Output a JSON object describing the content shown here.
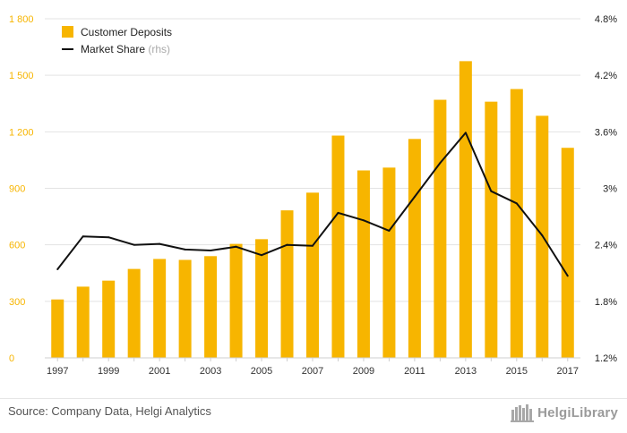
{
  "chart_data": {
    "type": "bar+line",
    "title": "",
    "categories": [
      "1997",
      "1998",
      "1999",
      "2000",
      "2001",
      "2002",
      "2003",
      "2004",
      "2005",
      "2006",
      "2007",
      "2008",
      "2009",
      "2010",
      "2011",
      "2012",
      "2013",
      "2014",
      "2015",
      "2016",
      "2017"
    ],
    "x_tick_labels": [
      "1997",
      "1999",
      "2001",
      "2003",
      "2005",
      "2007",
      "2009",
      "2011",
      "2013",
      "2015",
      "2017"
    ],
    "series": [
      {
        "name": "Customer Deposits",
        "type": "bar",
        "axis": "left",
        "color": "#f7b500",
        "values": [
          310,
          378,
          410,
          472,
          525,
          520,
          540,
          605,
          630,
          783,
          877,
          1180,
          995,
          1010,
          1162,
          1370,
          1575,
          1360,
          1427,
          1285,
          1115
        ]
      },
      {
        "name": "Market Share",
        "name_suffix": "(rhs)",
        "type": "line",
        "axis": "right",
        "color": "#111111",
        "values": [
          2.14,
          2.49,
          2.48,
          2.4,
          2.41,
          2.35,
          2.34,
          2.38,
          2.29,
          2.4,
          2.39,
          2.74,
          2.66,
          2.55,
          2.91,
          3.27,
          3.59,
          2.97,
          2.84,
          2.5,
          2.07
        ]
      }
    ],
    "y_left": {
      "min": 0,
      "max": 1800,
      "ticks": [
        0,
        300,
        600,
        900,
        1200,
        1500,
        1800
      ],
      "tick_labels": [
        "0",
        "300",
        "600",
        "900",
        "1 200",
        "1 500",
        "1 800"
      ],
      "label_color": "#f7b500"
    },
    "y_right": {
      "min": 1.2,
      "max": 4.8,
      "ticks": [
        1.2,
        1.8,
        2.4,
        3.0,
        3.6,
        4.2,
        4.8
      ],
      "tick_labels": [
        "1.2%",
        "1.8%",
        "2.4%",
        "3%",
        "3.6%",
        "4.2%",
        "4.8%"
      ],
      "label_color": "#222222"
    },
    "grid": true,
    "legend_position": "top-left"
  },
  "footer": {
    "source": "Source: Company Data, Helgi Analytics",
    "logo_text": "HelgiLibrary"
  },
  "logo_icon": "helgi-library-books-icon"
}
